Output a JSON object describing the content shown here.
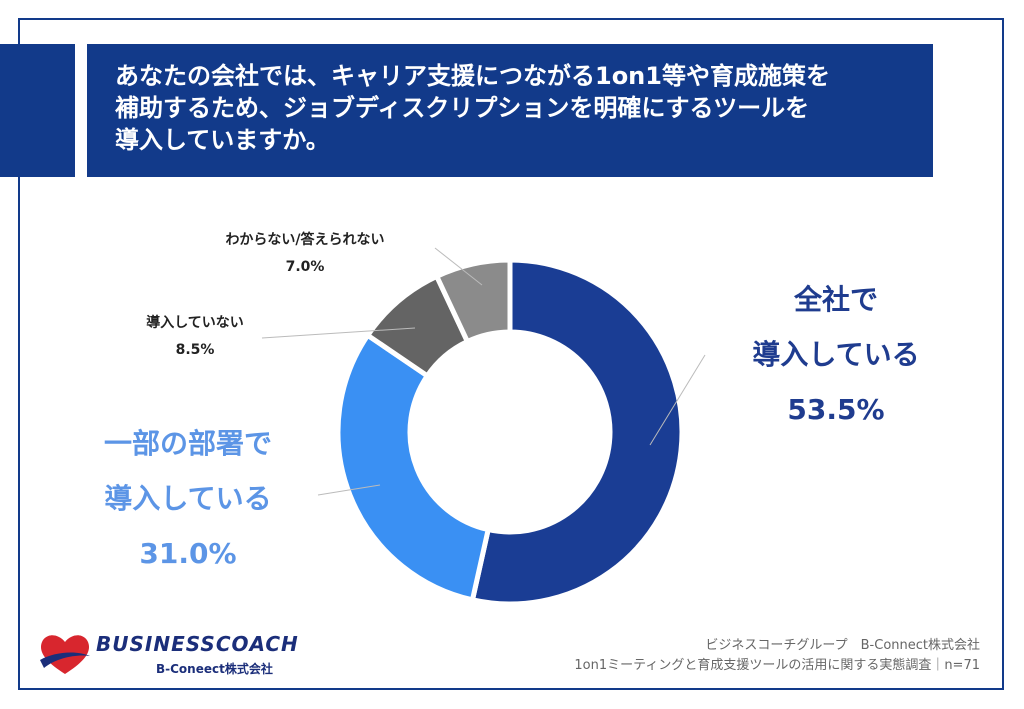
{
  "title": "あなたの会社では、キャリア支援につながる1on1等や育成施策を\n補助するため、ジョブディスクリプションを明確にするツールを\n導入していますか。",
  "chart_data": {
    "type": "pie",
    "donut": true,
    "categories": [
      "全社で導入している",
      "一部の部署で導入している",
      "導入していない",
      "わからない/答えられない"
    ],
    "values": [
      53.5,
      31.0,
      8.5,
      7.0
    ],
    "colors": [
      "#1a3d94",
      "#3a90f3",
      "#646464",
      "#8b8b8b"
    ]
  },
  "labels": {
    "all_line1": "全社で",
    "all_line2": "導入している",
    "all_pct": "53.5%",
    "part_line1": "一部の部署で",
    "part_line2": "導入している",
    "part_pct": "31.0%",
    "not_name": "導入していない",
    "not_pct": "8.5%",
    "unknown_name": "わからない/答えられない",
    "unknown_pct": "7.0%"
  },
  "footer": {
    "line1": "ビジネスコーチグループ　B-Connect株式会社",
    "line2": "1on1ミーティングと育成支援ツールの活用に関する実態調査｜n=71"
  },
  "logo": {
    "wordmark": "BUSINESSCOACH",
    "sub": "B-Coneect株式会社"
  }
}
